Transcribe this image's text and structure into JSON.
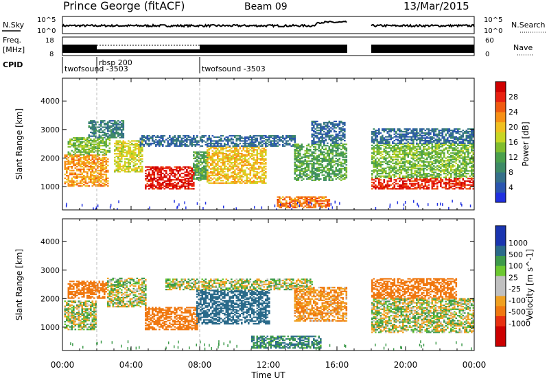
{
  "header": {
    "station": "Prince George (fitACF)",
    "beam": "Beam 09",
    "date": "13/Mar/2015"
  },
  "summary": {
    "nsky_label": "N.Sky",
    "nsearch_label": "N.Search",
    "freq_label_1": "Freq.",
    "freq_label_2": "[MHz]",
    "nave_label": "Nave",
    "cpid_label": "CPID",
    "nsky_ticks": [
      "10^5",
      "10^0"
    ],
    "nsearch_ticks": [
      "10^5",
      "10^0"
    ],
    "freq_ticks": [
      "18",
      "8"
    ],
    "nave_ticks": [
      "60",
      "0"
    ],
    "cpid_segments": [
      {
        "label": "twofsound -3503",
        "start_hour": 0,
        "end_hour": 2
      },
      {
        "label": "rbsp 200",
        "start_hour": 2,
        "end_hour": 8
      },
      {
        "label": "twofsound -3503",
        "start_hour": 8,
        "end_hour": 24
      }
    ],
    "data_gap_hours": [
      16.6,
      18.0
    ]
  },
  "chart_data": [
    {
      "type": "heatmap",
      "title": "",
      "xlabel": "",
      "ylabel": "Slant Range [km]",
      "xlim": [
        0,
        24
      ],
      "ylim": [
        180,
        4800
      ],
      "yticks": [
        1000,
        2000,
        3000,
        4000
      ],
      "colorbar": {
        "label": "Power [dB]",
        "range": [
          0,
          32
        ],
        "ticks": [
          4,
          8,
          12,
          16,
          20,
          24,
          28
        ]
      },
      "echo_regions": [
        {
          "hours": [
            0.1,
            2.7
          ],
          "range_km": [
            1000,
            2100
          ],
          "level": 22
        },
        {
          "hours": [
            0.3,
            2.8
          ],
          "range_km": [
            2100,
            2700
          ],
          "level": 14
        },
        {
          "hours": [
            1.5,
            3.6
          ],
          "range_km": [
            2700,
            3300
          ],
          "level": 8
        },
        {
          "hours": [
            3.0,
            4.6
          ],
          "range_km": [
            1500,
            2600
          ],
          "level": 18
        },
        {
          "hours": [
            4.8,
            7.6
          ],
          "range_km": [
            900,
            1700
          ],
          "level": 29
        },
        {
          "hours": [
            7.6,
            8.4
          ],
          "range_km": [
            1200,
            2200
          ],
          "level": 12
        },
        {
          "hours": [
            8.4,
            11.8
          ],
          "range_km": [
            1100,
            2400
          ],
          "level": 20
        },
        {
          "hours": [
            4.5,
            13.5
          ],
          "range_km": [
            2400,
            2800
          ],
          "level": 6
        },
        {
          "hours": [
            13.5,
            16.5
          ],
          "range_km": [
            1200,
            2500
          ],
          "level": 12
        },
        {
          "hours": [
            14.5,
            16.5
          ],
          "range_km": [
            2500,
            3300
          ],
          "level": 6
        },
        {
          "hours": [
            12.5,
            15.5
          ],
          "range_km": [
            250,
            650
          ],
          "level": 24
        },
        {
          "hours": [
            18.0,
            24.0
          ],
          "range_km": [
            900,
            1300
          ],
          "level": 28
        },
        {
          "hours": [
            18.0,
            24.0
          ],
          "range_km": [
            1300,
            2500
          ],
          "level": 14
        },
        {
          "hours": [
            18.0,
            24.0
          ],
          "range_km": [
            2500,
            3000
          ],
          "level": 6
        }
      ]
    },
    {
      "type": "heatmap",
      "title": "",
      "xlabel": "Time UT",
      "ylabel": "Slant Range [km]",
      "xlim": [
        0,
        24
      ],
      "ylim": [
        180,
        4800
      ],
      "yticks": [
        1000,
        2000,
        3000,
        4000
      ],
      "xticks": [
        "00:00",
        "04:00",
        "08:00",
        "12:00",
        "16:00",
        "20:00",
        "00:00"
      ],
      "colorbar": {
        "label": "Velocity [m s^-1]",
        "ticks": [
          1000,
          500,
          100,
          25,
          -25,
          -100,
          -500,
          -1000
        ]
      },
      "echo_regions": [
        {
          "hours": [
            0.1,
            2.0
          ],
          "range_km": [
            900,
            1900
          ],
          "level": 0
        },
        {
          "hours": [
            0.3,
            2.6
          ],
          "range_km": [
            2000,
            2600
          ],
          "level": -300
        },
        {
          "hours": [
            2.6,
            4.8
          ],
          "range_km": [
            1700,
            2700
          ],
          "level": 0
        },
        {
          "hours": [
            4.8,
            7.8
          ],
          "range_km": [
            900,
            1700
          ],
          "level": -300
        },
        {
          "hours": [
            7.8,
            12.0
          ],
          "range_km": [
            1100,
            2300
          ],
          "level": 200
        },
        {
          "hours": [
            6.0,
            14.5
          ],
          "range_km": [
            2300,
            2700
          ],
          "level": 0
        },
        {
          "hours": [
            13.5,
            16.5
          ],
          "range_km": [
            1200,
            2400
          ],
          "level": -100
        },
        {
          "hours": [
            11.0,
            15.0
          ],
          "range_km": [
            250,
            700
          ],
          "level": 100
        },
        {
          "hours": [
            18.0,
            24.0
          ],
          "range_km": [
            800,
            2000
          ],
          "level": 0
        },
        {
          "hours": [
            18.0,
            23.0
          ],
          "range_km": [
            2000,
            2700
          ],
          "level": -300
        }
      ]
    }
  ]
}
